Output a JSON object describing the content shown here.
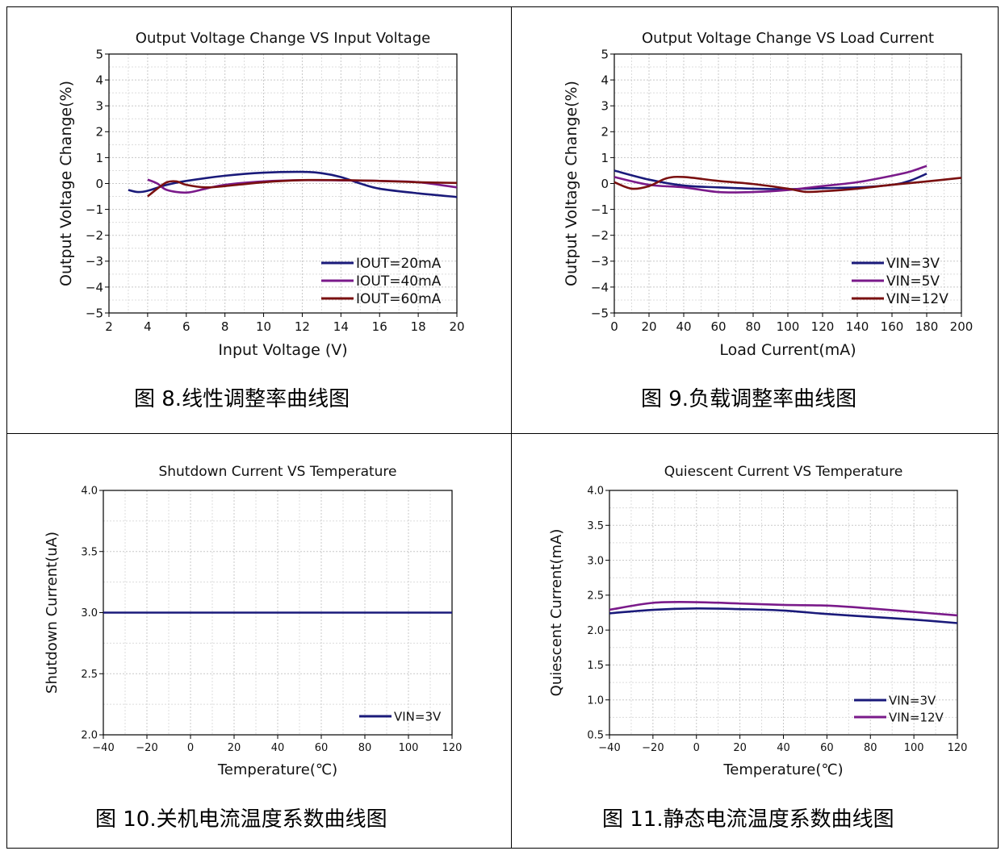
{
  "captions": [
    "图 8.线性调整率曲线图",
    "图 9.负载调整率曲线图",
    "图 10.关机电流温度系数曲线图",
    "图 11.静态电流温度系数曲线图"
  ],
  "chart_data": [
    {
      "type": "line",
      "title": "Output Voltage Change VS Input Voltage",
      "xlabel": "Input Voltage (V)",
      "ylabel": "Output Voltage Change(%)",
      "xlim": [
        2,
        20
      ],
      "ylim": [
        -5,
        5
      ],
      "xticks": [
        2,
        4,
        6,
        8,
        10,
        12,
        14,
        16,
        18,
        20
      ],
      "yticks": [
        -5,
        -4,
        -3,
        -2,
        -1,
        0,
        1,
        2,
        3,
        4,
        5
      ],
      "grid": true,
      "legend": "bottom-right",
      "series": [
        {
          "name": "IOUT=20mA",
          "color": "#1a1a7a",
          "x": [
            3,
            3.5,
            4,
            5,
            6,
            8,
            10,
            12,
            13,
            14,
            15,
            16,
            18,
            20
          ],
          "y": [
            -0.25,
            -0.33,
            -0.28,
            -0.05,
            0.1,
            0.3,
            0.42,
            0.45,
            0.4,
            0.25,
            0.0,
            -0.2,
            -0.38,
            -0.52
          ]
        },
        {
          "name": "IOUT=40mA",
          "color": "#7a1a8a",
          "x": [
            4,
            4.5,
            5,
            6,
            7,
            8,
            10,
            12,
            14,
            16,
            18,
            20
          ],
          "y": [
            0.15,
            0.0,
            -0.25,
            -0.35,
            -0.2,
            -0.05,
            0.08,
            0.13,
            0.12,
            0.1,
            0.05,
            -0.15
          ]
        },
        {
          "name": "IOUT=60mA",
          "color": "#7a1010",
          "x": [
            4,
            4.5,
            5,
            5.5,
            6,
            7,
            8,
            10,
            12,
            14,
            16,
            18,
            20
          ],
          "y": [
            -0.5,
            -0.2,
            0.05,
            0.08,
            -0.05,
            -0.15,
            -0.1,
            0.05,
            0.13,
            0.13,
            0.1,
            0.05,
            0.02
          ]
        }
      ]
    },
    {
      "type": "line",
      "title": "Output Voltage Change VS Load Current",
      "xlabel": "Load Current(mA)",
      "ylabel": "Output Voltage Change(%)",
      "xlim": [
        0,
        200
      ],
      "ylim": [
        -5,
        5
      ],
      "xticks": [
        0,
        20,
        40,
        60,
        80,
        100,
        120,
        140,
        160,
        180,
        200
      ],
      "yticks": [
        -5,
        -4,
        -3,
        -2,
        -1,
        0,
        1,
        2,
        3,
        4,
        5
      ],
      "grid": true,
      "legend": "bottom-right",
      "series": [
        {
          "name": "VIN=3V",
          "color": "#1a1a7a",
          "x": [
            0,
            20,
            40,
            60,
            80,
            100,
            120,
            140,
            160,
            170,
            180
          ],
          "y": [
            0.5,
            0.15,
            -0.08,
            -0.15,
            -0.2,
            -0.22,
            -0.18,
            -0.15,
            -0.05,
            0.1,
            0.38
          ]
        },
        {
          "name": "VIN=5V",
          "color": "#7a1a8a",
          "x": [
            0,
            20,
            40,
            60,
            80,
            100,
            120,
            140,
            160,
            170,
            180
          ],
          "y": [
            0.25,
            -0.05,
            -0.15,
            -0.33,
            -0.33,
            -0.25,
            -0.1,
            0.05,
            0.3,
            0.45,
            0.68
          ]
        },
        {
          "name": "VIN=12V",
          "color": "#7a1010",
          "x": [
            0,
            10,
            20,
            30,
            40,
            60,
            80,
            100,
            110,
            120,
            140,
            160,
            180,
            200
          ],
          "y": [
            0.05,
            -0.2,
            -0.1,
            0.2,
            0.25,
            0.1,
            -0.02,
            -0.2,
            -0.32,
            -0.3,
            -0.2,
            -0.05,
            0.08,
            0.22
          ]
        }
      ]
    },
    {
      "type": "line",
      "title": "Shutdown Current VS Temperature",
      "xlabel": "Temperature(℃)",
      "ylabel": "Shutdown Current(uA)",
      "xlim": [
        -40,
        120
      ],
      "ylim": [
        2.0,
        4.0
      ],
      "xticks": [
        -40,
        -20,
        0,
        20,
        40,
        60,
        80,
        100,
        120
      ],
      "xtick_labels": [
        "−40",
        "−20",
        "0",
        "20",
        "40",
        "60",
        "80",
        "100",
        "120"
      ],
      "yticks": [
        2.0,
        2.5,
        3.0,
        3.5,
        4.0
      ],
      "ytick_labels": [
        "2.0",
        "2.5",
        "3.0",
        "3.5",
        "4.0"
      ],
      "grid": true,
      "legend": "bottom-right",
      "series": [
        {
          "name": "VIN=3V",
          "color": "#1a1a7a",
          "x": [
            -40,
            -20,
            0,
            20,
            40,
            60,
            80,
            100,
            120
          ],
          "y": [
            3.0,
            3.0,
            3.0,
            3.0,
            3.0,
            3.0,
            3.0,
            3.0,
            3.0
          ]
        }
      ]
    },
    {
      "type": "line",
      "title": "Quiescent Current VS Temperature",
      "xlabel": "Temperature(℃)",
      "ylabel": "Quiescent Current(mA)",
      "xlim": [
        -40,
        120
      ],
      "ylim": [
        0.5,
        4.0
      ],
      "xticks": [
        -40,
        -20,
        0,
        20,
        40,
        60,
        80,
        100,
        120
      ],
      "xtick_labels": [
        "−40",
        "−20",
        "0",
        "20",
        "40",
        "60",
        "80",
        "100",
        "120"
      ],
      "yticks": [
        0.5,
        1.0,
        1.5,
        2.0,
        2.5,
        3.0,
        3.5,
        4.0
      ],
      "ytick_labels": [
        "0.5",
        "1.0",
        "1.5",
        "2.0",
        "2.5",
        "3.0",
        "3.5",
        "4.0"
      ],
      "grid": true,
      "legend": "bottom-right",
      "series": [
        {
          "name": "VIN=3V",
          "color": "#1a1a7a",
          "x": [
            -40,
            -20,
            0,
            20,
            40,
            60,
            80,
            100,
            120
          ],
          "y": [
            2.24,
            2.29,
            2.31,
            2.3,
            2.28,
            2.23,
            2.19,
            2.15,
            2.1
          ]
        },
        {
          "name": "VIN=12V",
          "color": "#7a1a8a",
          "x": [
            -40,
            -20,
            0,
            20,
            40,
            60,
            80,
            100,
            120
          ],
          "y": [
            2.29,
            2.39,
            2.4,
            2.38,
            2.36,
            2.35,
            2.31,
            2.26,
            2.21
          ]
        }
      ]
    }
  ]
}
